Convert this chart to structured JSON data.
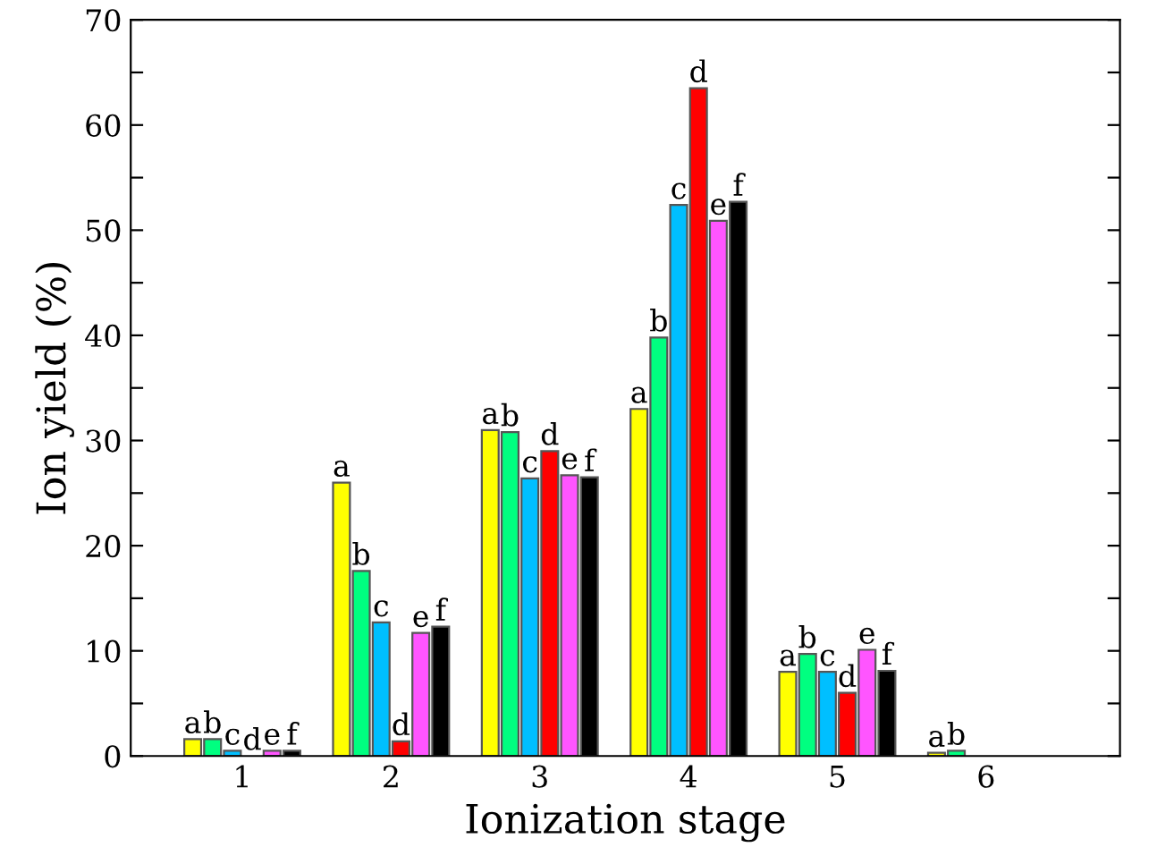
{
  "chart_data": {
    "type": "bar",
    "xlabel": "Ionization stage",
    "ylabel": "Ion yield (%)",
    "categories": [
      "1",
      "2",
      "3",
      "4",
      "5",
      "6"
    ],
    "series": [
      {
        "color": "#ffff00",
        "values": [
          1.6,
          26.0,
          31.0,
          33.0,
          8.0,
          0.3
        ],
        "value_labels": [
          "a",
          "a",
          "a",
          "a",
          "a",
          "a"
        ]
      },
      {
        "color": "#00ff80",
        "values": [
          1.6,
          17.6,
          30.8,
          39.8,
          9.7,
          0.5
        ],
        "value_labels": [
          "b",
          "b",
          "b",
          "b",
          "b",
          "b"
        ]
      },
      {
        "color": "#00bfff",
        "values": [
          0.5,
          12.7,
          26.4,
          52.4,
          8.0,
          null
        ],
        "value_labels": [
          "c",
          "c",
          "c",
          "c",
          "c",
          null
        ]
      },
      {
        "color": "#ff0000",
        "values": [
          null,
          1.4,
          29.0,
          63.5,
          6.0,
          null
        ],
        "value_labels": [
          "d",
          "d",
          "d",
          "d",
          "d",
          null
        ]
      },
      {
        "color": "#ff55ff",
        "values": [
          0.5,
          11.7,
          26.7,
          50.9,
          10.1,
          null
        ],
        "value_labels": [
          "e",
          "e",
          "e",
          "e",
          "e",
          null
        ]
      },
      {
        "color": "#000000",
        "values": [
          0.5,
          12.3,
          26.5,
          52.7,
          8.1,
          null
        ],
        "value_labels": [
          "f",
          "f",
          "f",
          "f",
          "f",
          null
        ]
      }
    ],
    "ylim": [
      0,
      70
    ],
    "yticks": [
      0,
      {
        "value": 5,
        "label": null
      },
      10,
      {
        "value": 15,
        "label": null
      },
      20,
      {
        "value": 25,
        "label": null
      },
      30,
      {
        "value": 35,
        "label": null
      },
      40,
      {
        "value": 45,
        "label": null
      },
      50,
      {
        "value": 55,
        "label": null
      },
      60,
      {
        "value": 65,
        "label": null
      },
      70
    ],
    "grid": false,
    "legend": false
  }
}
